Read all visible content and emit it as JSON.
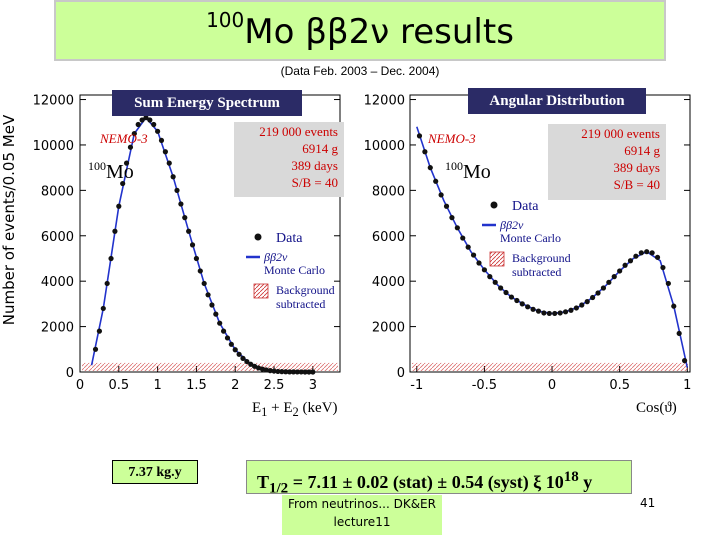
{
  "title": {
    "prefix": "100",
    "main": "Mo ββ2ν results"
  },
  "subtitle": "(Data Feb. 2003 – Dec. 2004)",
  "footer": {
    "line1": "From neutrinos... DK&ER",
    "line2": "lecture11"
  },
  "page_number": "41",
  "mass_label": "7.37 kg.y",
  "result": {
    "text": "T1/2 = 7.11 ± 0.02 (stat) ± 0.54 (syst) ξ 1018 y"
  },
  "colors": {
    "title_bg": "#ccff99",
    "panel_title_bg": "#2b2b66",
    "info_box": "#d9d9d9",
    "fit_line": "#2233cc",
    "points": "#111111",
    "background_hatch": "#cc3333"
  },
  "chart_data": [
    {
      "type": "line",
      "title": "Sum Energy Spectrum",
      "ylabel": "Number of events/0.05 MeV",
      "xlabel": "E1 + E2  (keV)",
      "xlim": [
        0,
        3.35
      ],
      "ylim": [
        0,
        12200
      ],
      "xticks": [
        "0",
        "0.5",
        "1",
        "1.5",
        "2",
        "2.5",
        "3"
      ],
      "yticks": [
        "0",
        "2000",
        "4000",
        "6000",
        "8000",
        "10000",
        "12000"
      ],
      "grid": false,
      "annotations": {
        "experiment": "NEMO-3",
        "isotope_mass": "100",
        "isotope": "Mo",
        "events": "219 000  events",
        "mass": "6914 g",
        "days": "389 days",
        "sb": "S/B = 40"
      },
      "legend": [
        {
          "name": "Data",
          "symbol": "dot"
        },
        {
          "name": "ββ2ν",
          "symbol": "line"
        },
        {
          "name": "Monte Carlo",
          "symbol": "text"
        },
        {
          "name": "Background",
          "symbol": "hatch"
        },
        {
          "name": "subtracted",
          "symbol": "text"
        }
      ],
      "series": [
        {
          "name": "Data",
          "x": [
            0.2,
            0.25,
            0.3,
            0.35,
            0.4,
            0.45,
            0.5,
            0.55,
            0.6,
            0.65,
            0.7,
            0.75,
            0.8,
            0.85,
            0.9,
            0.95,
            1.0,
            1.05,
            1.1,
            1.15,
            1.2,
            1.25,
            1.3,
            1.35,
            1.4,
            1.45,
            1.5,
            1.55,
            1.6,
            1.65,
            1.7,
            1.75,
            1.8,
            1.85,
            1.9,
            1.95,
            2.0,
            2.05,
            2.1,
            2.15,
            2.2,
            2.25,
            2.3,
            2.35,
            2.4,
            2.45,
            2.5,
            2.55,
            2.6,
            2.65,
            2.7,
            2.75,
            2.8,
            2.85,
            2.9,
            2.95,
            3.0
          ],
          "y": [
            1000,
            1800,
            2800,
            3900,
            5000,
            6200,
            7300,
            8300,
            9200,
            9900,
            10500,
            10900,
            11100,
            11200,
            11100,
            10900,
            10600,
            10200,
            9700,
            9200,
            8600,
            8000,
            7400,
            6800,
            6200,
            5600,
            5000,
            4450,
            3900,
            3400,
            2950,
            2550,
            2150,
            1800,
            1500,
            1220,
            980,
            780,
            600,
            460,
            340,
            250,
            180,
            130,
            90,
            60,
            40,
            25,
            15,
            10,
            6,
            4,
            3,
            2,
            1,
            0,
            0
          ]
        },
        {
          "name": "ββ2ν",
          "x": [
            0.15,
            0.3,
            0.5,
            0.7,
            0.85,
            1.0,
            1.2,
            1.4,
            1.6,
            1.8,
            2.0,
            2.2,
            2.4,
            2.6,
            2.8,
            3.0
          ],
          "y": [
            300,
            2800,
            7300,
            10500,
            11200,
            10600,
            8600,
            6200,
            3900,
            2150,
            980,
            340,
            90,
            15,
            3,
            0
          ]
        }
      ]
    },
    {
      "type": "line",
      "title": "Angular Distribution",
      "xlabel": "Cos(ϑ)",
      "xlim": [
        -1.05,
        1.02
      ],
      "ylim": [
        0,
        12200
      ],
      "xticks": [
        "-1",
        "-0.5",
        "0",
        "0.5",
        "1"
      ],
      "yticks": [
        "0",
        "2000",
        "4000",
        "6000",
        "8000",
        "10000",
        "12000"
      ],
      "grid": false,
      "annotations": {
        "experiment": "NEMO-3",
        "isotope_mass": "100",
        "isotope": "Mo",
        "events": "219 000  events",
        "mass": "6914 g",
        "days": "389 days",
        "sb": "S/B = 40"
      },
      "legend": [
        {
          "name": "Data",
          "symbol": "dot"
        },
        {
          "name": "ββ2ν",
          "symbol": "line"
        },
        {
          "name": "Monte Carlo",
          "symbol": "text"
        },
        {
          "name": "Background",
          "symbol": "hatch"
        },
        {
          "name": "subtracted",
          "symbol": "text"
        }
      ],
      "series": [
        {
          "name": "Data",
          "x": [
            -0.98,
            -0.94,
            -0.9,
            -0.86,
            -0.82,
            -0.78,
            -0.74,
            -0.7,
            -0.66,
            -0.62,
            -0.58,
            -0.54,
            -0.5,
            -0.46,
            -0.42,
            -0.38,
            -0.34,
            -0.3,
            -0.26,
            -0.22,
            -0.18,
            -0.14,
            -0.1,
            -0.06,
            -0.02,
            0.02,
            0.06,
            0.1,
            0.14,
            0.18,
            0.22,
            0.26,
            0.3,
            0.34,
            0.38,
            0.42,
            0.46,
            0.5,
            0.54,
            0.58,
            0.62,
            0.66,
            0.7,
            0.74,
            0.78,
            0.82,
            0.86,
            0.9,
            0.94,
            0.98
          ],
          "y": [
            10400,
            9700,
            9000,
            8400,
            7800,
            7300,
            6800,
            6350,
            5900,
            5500,
            5150,
            4800,
            4500,
            4200,
            3950,
            3700,
            3500,
            3300,
            3150,
            3000,
            2870,
            2760,
            2680,
            2600,
            2580,
            2580,
            2600,
            2650,
            2720,
            2820,
            2950,
            3100,
            3280,
            3480,
            3700,
            3950,
            4200,
            4450,
            4700,
            4900,
            5100,
            5250,
            5300,
            5250,
            5050,
            4600,
            3900,
            2900,
            1700,
            500
          ]
        },
        {
          "name": "ββ2ν",
          "x": [
            -1.0,
            -0.9,
            -0.8,
            -0.7,
            -0.6,
            -0.5,
            -0.4,
            -0.3,
            -0.2,
            -0.1,
            0.0,
            0.1,
            0.2,
            0.3,
            0.4,
            0.5,
            0.6,
            0.7,
            0.8,
            0.9,
            1.0
          ],
          "y": [
            10800,
            9000,
            7550,
            6350,
            5300,
            4500,
            3820,
            3300,
            2950,
            2680,
            2570,
            2650,
            2880,
            3280,
            3820,
            4450,
            5000,
            5300,
            4900,
            2900,
            200
          ]
        }
      ]
    }
  ]
}
